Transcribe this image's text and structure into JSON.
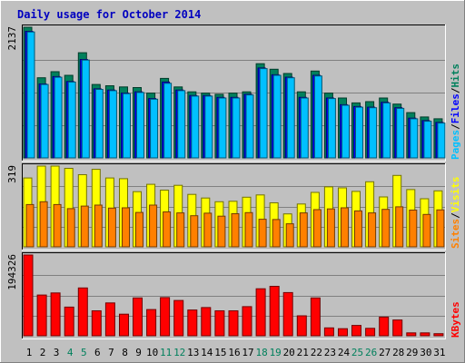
{
  "title": "Daily usage for October 2014",
  "colors": {
    "outer_bg": "#c0c0c0",
    "panel_bg": "#c0c0c0",
    "gridline": "#808080",
    "title": "#0000c0",
    "hits": "#00805c",
    "files": "#0000ff",
    "pages": "#00c0ff",
    "visits": "#ffff00",
    "sites": "#ff8000",
    "kbytes": "#ff0000",
    "weekday_label": "#000000",
    "weekend_label": "#00805c"
  },
  "chart_data": [
    {
      "type": "bar",
      "title": "Daily usage for October 2014",
      "panel": "hits-files-pages",
      "legend": [
        "Pages",
        "Files",
        "Hits"
      ],
      "legend_separator": "/",
      "y_max_label": "2137",
      "ylim": [
        0,
        2137
      ],
      "categories": [
        "1",
        "2",
        "3",
        "4",
        "5",
        "6",
        "7",
        "8",
        "9",
        "10",
        "11",
        "12",
        "13",
        "14",
        "15",
        "16",
        "17",
        "18",
        "19",
        "20",
        "21",
        "22",
        "23",
        "24",
        "25",
        "26",
        "27",
        "28",
        "29",
        "30",
        "31"
      ],
      "weekend_days": [
        "4",
        "5",
        "11",
        "12",
        "18",
        "19",
        "25",
        "26"
      ],
      "series": [
        {
          "name": "Hits",
          "values": [
            2137,
            1310,
            1410,
            1350,
            1720,
            1200,
            1180,
            1160,
            1150,
            1060,
            1300,
            1160,
            1080,
            1060,
            1040,
            1060,
            1080,
            1540,
            1450,
            1380,
            1080,
            1420,
            1060,
            980,
            900,
            920,
            980,
            880,
            740,
            670,
            640
          ]
        },
        {
          "name": "Files",
          "values": [
            2070,
            1210,
            1330,
            1250,
            1610,
            1130,
            1110,
            1060,
            1080,
            970,
            1240,
            1110,
            1020,
            1020,
            990,
            990,
            1040,
            1470,
            1360,
            1320,
            990,
            1350,
            980,
            870,
            840,
            830,
            910,
            820,
            650,
            610,
            580
          ]
        },
        {
          "name": "Pages",
          "values": [
            2060,
            1200,
            1320,
            1240,
            1600,
            1120,
            1100,
            1050,
            1070,
            960,
            1220,
            1100,
            1010,
            1010,
            980,
            980,
            1030,
            1460,
            1350,
            1310,
            980,
            1340,
            970,
            860,
            830,
            820,
            900,
            810,
            640,
            600,
            570
          ]
        }
      ]
    },
    {
      "type": "bar",
      "panel": "visits-sites",
      "legend": [
        "Sites",
        "Visits"
      ],
      "legend_separator": "/",
      "y_max_label": "319",
      "ylim": [
        0,
        319
      ],
      "categories": [
        "1",
        "2",
        "3",
        "4",
        "5",
        "6",
        "7",
        "8",
        "9",
        "10",
        "11",
        "12",
        "13",
        "14",
        "15",
        "16",
        "17",
        "18",
        "19",
        "20",
        "21",
        "22",
        "23",
        "24",
        "25",
        "26",
        "27",
        "28",
        "29",
        "30",
        "31"
      ],
      "series": [
        {
          "name": "Visits",
          "values": [
            272,
            319,
            319,
            310,
            285,
            306,
            272,
            269,
            218,
            247,
            224,
            243,
            207,
            193,
            178,
            180,
            196,
            205,
            174,
            130,
            169,
            215,
            237,
            233,
            219,
            257,
            197,
            282,
            226,
            190,
            221
          ]
        },
        {
          "name": "Sites",
          "values": [
            167,
            178,
            167,
            151,
            161,
            165,
            153,
            154,
            136,
            165,
            138,
            134,
            123,
            133,
            121,
            131,
            135,
            109,
            108,
            91,
            134,
            147,
            150,
            154,
            142,
            134,
            148,
            158,
            145,
            128,
            146
          ]
        }
      ]
    },
    {
      "type": "bar",
      "panel": "kbytes",
      "legend": [
        "KBytes"
      ],
      "y_max_label": "194326",
      "ylim": [
        0,
        194326
      ],
      "categories": [
        "1",
        "2",
        "3",
        "4",
        "5",
        "6",
        "7",
        "8",
        "9",
        "10",
        "11",
        "12",
        "13",
        "14",
        "15",
        "16",
        "17",
        "18",
        "19",
        "20",
        "21",
        "22",
        "23",
        "24",
        "25",
        "26",
        "27",
        "28",
        "29",
        "30",
        "31"
      ],
      "series": [
        {
          "name": "KBytes",
          "values": [
            194326,
            98000,
            103000,
            69000,
            115000,
            60000,
            79000,
            52000,
            91000,
            63000,
            92000,
            85000,
            62000,
            68000,
            60000,
            60000,
            70000,
            113000,
            119000,
            104000,
            48000,
            91000,
            19000,
            17000,
            25000,
            18000,
            45000,
            38000,
            7000,
            7000,
            5000
          ]
        }
      ]
    }
  ]
}
